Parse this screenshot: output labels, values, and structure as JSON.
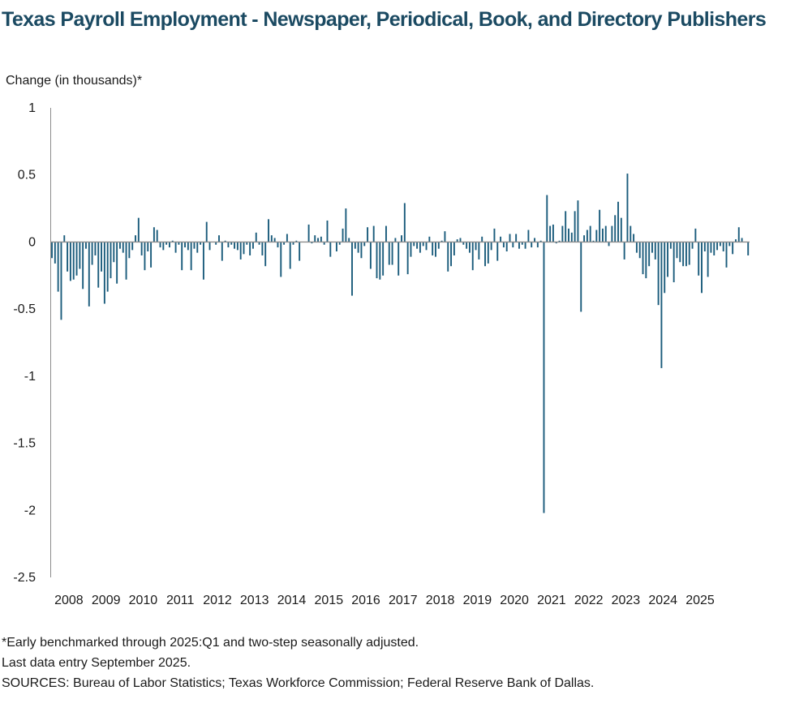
{
  "title": "Texas Payroll Employment - Newspaper, Periodical, Book, and Directory Publishers",
  "footnotes": [
    "*Early benchmarked through 2025:Q1 and two-step seasonally adjusted.",
    "Last data entry September 2025.",
    "SOURCES:  Bureau of Labor Statistics; Texas Workforce Commission;  Federal Reserve Bank of Dallas."
  ],
  "colors": {
    "bar": "#1b5c7c",
    "title": "#1b4a62",
    "axis": "#8c8c8c"
  },
  "chart_data": {
    "type": "bar",
    "title": "Texas Payroll Employment - Newspaper, Periodical, Book, and Directory Publishers",
    "ylabel": "Change (in thousands)*",
    "xlabel": "",
    "ylim": [
      -2.5,
      1
    ],
    "yticks": [
      1,
      0.5,
      0,
      -0.5,
      -1,
      -1.5,
      -2,
      -2.5
    ],
    "ytick_labels": [
      "1",
      "0.5",
      "0",
      "-0.5",
      "-1",
      "-1.5",
      "-2",
      "-2.5"
    ],
    "x_tick_labels": [
      "2008",
      "2009",
      "2010",
      "2011",
      "2012",
      "2013",
      "2014",
      "2015",
      "2016",
      "2017",
      "2018",
      "2019",
      "2020",
      "2021",
      "2022",
      "2023",
      "2024",
      "2025"
    ],
    "start": "2008-01",
    "frequency": "monthly",
    "values": [
      -0.12,
      -0.16,
      -0.37,
      -0.58,
      0.05,
      -0.22,
      -0.29,
      -0.28,
      -0.25,
      -0.2,
      -0.35,
      -0.05,
      -0.48,
      -0.17,
      -0.1,
      -0.34,
      -0.22,
      -0.46,
      -0.37,
      -0.27,
      -0.15,
      -0.31,
      -0.05,
      -0.08,
      -0.28,
      -0.12,
      -0.06,
      0.05,
      0.18,
      -0.1,
      -0.21,
      -0.07,
      -0.19,
      0.11,
      0.09,
      -0.04,
      -0.06,
      -0.02,
      -0.04,
      0.01,
      -0.08,
      -0.02,
      -0.21,
      -0.04,
      -0.06,
      -0.21,
      -0.05,
      -0.08,
      -0.02,
      -0.28,
      0.15,
      -0.06,
      0.0,
      -0.02,
      0.05,
      -0.14,
      0.01,
      -0.04,
      -0.02,
      -0.05,
      -0.06,
      -0.13,
      -0.09,
      -0.02,
      -0.1,
      -0.05,
      0.07,
      -0.02,
      -0.1,
      -0.18,
      0.17,
      0.05,
      0.03,
      -0.04,
      -0.26,
      -0.02,
      0.06,
      -0.2,
      -0.02,
      0.01,
      -0.14,
      0.0,
      0.0,
      0.13,
      -0.01,
      0.05,
      0.03,
      0.04,
      -0.02,
      0.16,
      -0.11,
      0.0,
      -0.07,
      -0.02,
      0.1,
      0.25,
      0.03,
      -0.4,
      -0.05,
      -0.08,
      -0.12,
      -0.03,
      0.11,
      -0.2,
      0.12,
      -0.27,
      -0.28,
      -0.25,
      0.12,
      -0.17,
      -0.17,
      0.03,
      -0.25,
      0.05,
      0.29,
      -0.24,
      -0.11,
      -0.03,
      -0.05,
      -0.08,
      -0.03,
      -0.06,
      0.04,
      -0.1,
      -0.11,
      -0.05,
      0.01,
      0.08,
      -0.22,
      -0.18,
      -0.1,
      0.02,
      0.03,
      -0.02,
      -0.05,
      -0.08,
      -0.21,
      -0.06,
      -0.13,
      0.04,
      -0.18,
      -0.16,
      -0.06,
      0.1,
      -0.14,
      0.04,
      -0.04,
      -0.07,
      0.06,
      -0.04,
      0.06,
      -0.05,
      -0.02,
      -0.05,
      0.09,
      -0.04,
      0.03,
      -0.04,
      0.01,
      -2.02,
      0.35,
      0.12,
      0.13,
      -0.01,
      0.01,
      0.12,
      0.23,
      0.1,
      0.07,
      0.23,
      0.31,
      -0.52,
      0.05,
      0.09,
      0.12,
      0.01,
      0.09,
      0.24,
      0.1,
      0.12,
      -0.03,
      0.12,
      0.2,
      0.3,
      0.18,
      -0.13,
      0.51,
      0.12,
      0.06,
      -0.08,
      -0.12,
      -0.24,
      -0.27,
      -0.18,
      -0.08,
      -0.13,
      -0.47,
      -0.94,
      -0.38,
      -0.26,
      -0.05,
      -0.3,
      -0.12,
      -0.15,
      -0.18,
      -0.18,
      -0.17,
      -0.05,
      0.1,
      -0.25,
      -0.38,
      -0.07,
      -0.26,
      -0.08,
      -0.1,
      -0.06,
      -0.03,
      -0.07,
      -0.19,
      -0.03,
      -0.09,
      0.02,
      0.11,
      0.03,
      0.0,
      -0.1
    ]
  }
}
